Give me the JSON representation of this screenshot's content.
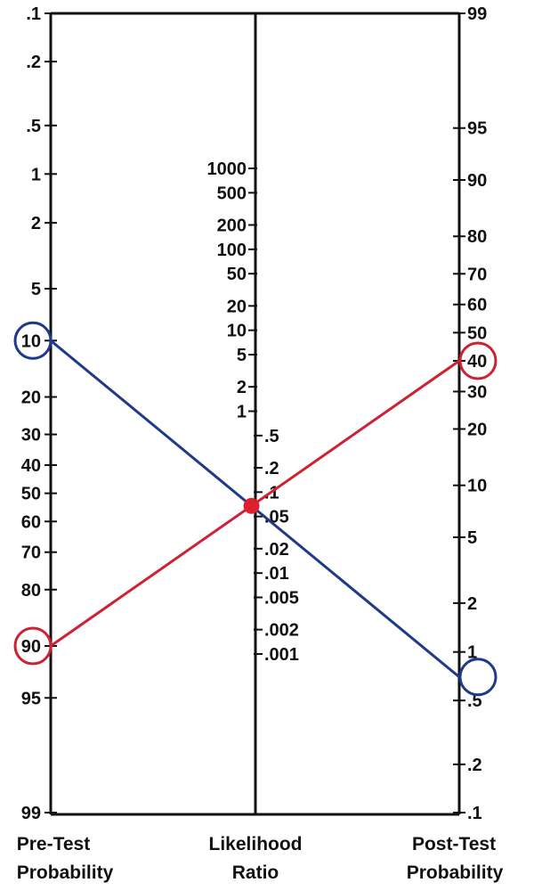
{
  "chart_data": {
    "type": "nomogram",
    "axes": {
      "pre_test": {
        "title_line1": "Pre-Test",
        "title_line2": "Probability",
        "ticks": [
          ".1",
          ".2",
          ".5",
          "1",
          "2",
          "5",
          "10",
          "20",
          "30",
          "40",
          "50",
          "60",
          "70",
          "80",
          "90",
          "95",
          "99"
        ]
      },
      "likelihood_ratio": {
        "title_line1": "Likelihood",
        "title_line2": "Ratio",
        "ticks_left": [
          "1000",
          "500",
          "200",
          "100",
          "50",
          "20",
          "10",
          "5",
          "2",
          "1"
        ],
        "ticks_right": [
          ".5",
          ".2",
          ".1",
          ".05",
          ".02",
          ".01",
          ".005",
          ".002",
          ".001"
        ]
      },
      "post_test": {
        "title_line1": "Post-Test",
        "title_line2": "Probability",
        "ticks": [
          "99",
          "95",
          "90",
          "80",
          "70",
          "60",
          "50",
          "40",
          "30",
          "20",
          "10",
          "5",
          "2",
          "1",
          ".5",
          ".2",
          ".1"
        ]
      }
    },
    "series": [
      {
        "pre_test": 10,
        "likelihood_ratio": 0.07,
        "post_test": 0.7,
        "color": "#1f3a8a"
      },
      {
        "pre_test": 90,
        "likelihood_ratio": 0.07,
        "post_test": 40,
        "color": "#cc2233"
      }
    ],
    "intersection": {
      "likelihood_ratio": 0.07,
      "color": "#dd1f2e"
    }
  }
}
